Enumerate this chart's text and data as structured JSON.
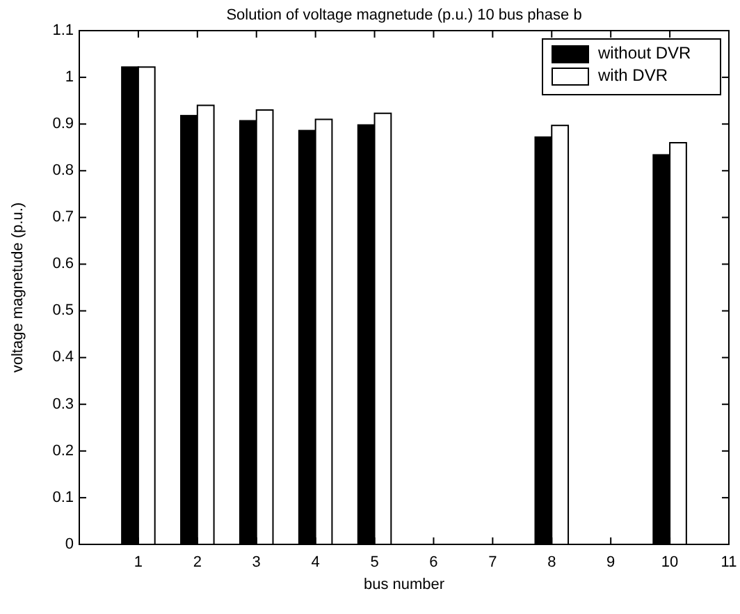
{
  "chart_data": {
    "type": "bar",
    "title": "Solution of voltage magnetude (p.u.) 10 bus phase b",
    "xlabel": "bus number",
    "ylabel": "voltage magnetude (p.u.)",
    "x": [
      1,
      2,
      3,
      4,
      5,
      8,
      10
    ],
    "series": [
      {
        "name": "without DVR",
        "color": "#000000",
        "values": [
          1.022,
          0.918,
          0.907,
          0.886,
          0.898,
          0.872,
          0.834
        ]
      },
      {
        "name": "with DVR",
        "color": "#ffffff",
        "values": [
          1.022,
          0.94,
          0.93,
          0.91,
          0.923,
          0.897,
          0.86
        ]
      }
    ],
    "xlim": [
      0,
      11
    ],
    "xticks": [
      1,
      2,
      3,
      4,
      5,
      6,
      7,
      8,
      9,
      10,
      11
    ],
    "ylim": [
      0,
      1.1
    ],
    "yticks": [
      0,
      0.1,
      0.2,
      0.3,
      0.4,
      0.5,
      0.6,
      0.7,
      0.8,
      0.9,
      1,
      1.1
    ],
    "grid": false,
    "legend": "top right"
  }
}
